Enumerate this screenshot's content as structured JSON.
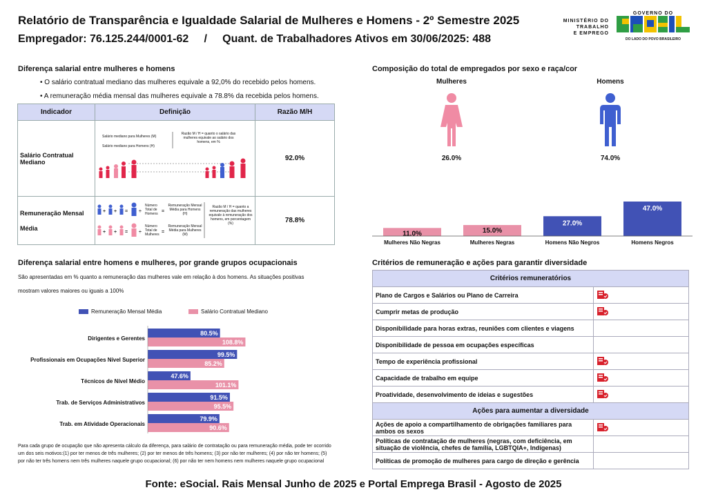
{
  "header": {
    "title": "Relatório de Transparência e Igualdade Salarial de Mulheres e Homens - 2º Semestre 2025",
    "subtitle": "Empregador: 76.125.244/0001-62     /     Quant. de Trabalhadores Ativos em 30/06/2025: 488"
  },
  "logos": {
    "ministry": [
      "MINISTÉRIO DO",
      "TRABALHO",
      "E EMPREGO"
    ],
    "gov_top": "GOVERNO DO",
    "gov_brand": "BRASIL",
    "gov_bottom": "DO LADO DO POVO BRASILEIRO"
  },
  "salary_diff": {
    "title": "Diferença salarial entre mulheres e homens",
    "bullet1": "• O salário contratual mediano das mulheres equivale a 92,0% do recebido pelos homens.",
    "bullet2": "• A remuneração média mensal das mulheres equivale a 78.8% da recebida pelos homens.",
    "table": {
      "headers": [
        "Indicador",
        "Definição",
        "Razão M/H"
      ],
      "row1": {
        "indicator": "Salário Contratual Mediano",
        "value": "92.0%",
        "def_a": "Salário mediano para Mulheres (M)",
        "def_b": "Salário mediano para Homens (H)",
        "def_c": "Razão M / H = quanto o salário das mulheres equivale ao salário dos homens, em %"
      },
      "row2": {
        "indicator_a": "Remuneração Mensal",
        "indicator_b": "Média",
        "value": "78.8%",
        "def_a": "Número Total de Homens",
        "def_b": "Remuneração Mensal Média para Homens (H)",
        "def_c": "Número Total de Mulheres",
        "def_d": "Remuneração Mensal Média para Mulheres (M)",
        "def_e": "Razão M / H = quanto a remuneração das mulheres equivale à remuneração dos homens, em porcentagem (%)"
      }
    }
  },
  "composition": {
    "title": "Composição do total de empregados por sexo e raça/cor",
    "women_label": "Mulheres",
    "men_label": "Homens",
    "women_pct": "26.0%",
    "men_pct": "74.0%",
    "colors": {
      "women": "#f08ba4",
      "men": "#3f5fd0",
      "bar_women": "#e991a8",
      "bar_men": "#4152b5"
    }
  },
  "chart_data": [
    {
      "type": "bar",
      "categories": [
        "Mulheres Não Negras",
        "Mulheres Negras",
        "Homens Não Negros",
        "Homens Negros"
      ],
      "values": [
        11.0,
        15.0,
        27.0,
        47.0
      ],
      "labels": [
        "11.0%",
        "15.0%",
        "27.0%",
        "47.0%"
      ],
      "ylim": [
        0,
        47
      ]
    },
    {
      "type": "bar",
      "orientation": "horizontal",
      "categories": [
        "Dirigentes e Gerentes",
        "Profissionais em Ocupações Nível Superior",
        "Técnicos de Nível Médio",
        "Trab. de Serviços Administrativos",
        "Trab. em Atividade Operacionais"
      ],
      "series": [
        {
          "name": "Remuneração Mensal Média",
          "values": [
            80.5,
            99.5,
            47.6,
            91.5,
            79.9
          ],
          "labels": [
            "80.5%",
            "99.5%",
            "47.6%",
            "91.5%",
            "79.9%"
          ]
        },
        {
          "name": "Salário Contratual Mediano",
          "values": [
            108.8,
            85.2,
            101.1,
            95.5,
            90.6
          ],
          "labels": [
            "108.8%",
            "85.2%",
            "101.1%",
            "95.5%",
            "90.6%"
          ]
        }
      ],
      "legend": "top"
    }
  ],
  "occupational": {
    "title": "Diferença salarial entre homens e mulheres, por grande grupos ocupacionais",
    "desc1": "São apresentadas em % quanto a remuneração das mulheres vale em relação à dos homens. As situações positivas",
    "desc2": "mostram valores maiores ou iguais a 100%",
    "footnote": "Para cada grupo de ocupação que não apresenta cálculo da diferença, para salário de contratação ou para remuneração média, pode ter ocorrido um dos seis motivos:(1) por ter menos de três mulheres; (2) por ter menos de três homens; (3) por não ter mulheres; (4) por não ter homens; (5) por não ter três homens nem três mulheres naquele grupo ocupacional; (6) por não ter nem homens nem mulheres naquele grupo ocupacional"
  },
  "criteria": {
    "title": "Critérios de remuneração e ações para garantir diversidade",
    "header1": "Critérios remuneratórios",
    "items": [
      {
        "label": "Plano de Cargos e Salários ou Plano de Carreira",
        "icon": true
      },
      {
        "label": "Cumprir metas de produção",
        "icon": true
      },
      {
        "label": "Disponibilidade para horas extras, reuniões com clientes e viagens",
        "icon": false
      },
      {
        "label": "Disponibilidade de pessoa em ocupações específicas",
        "icon": false
      },
      {
        "label": "Tempo de experiência profissional",
        "icon": true
      },
      {
        "label": "Capacidade de trabalho em equipe",
        "icon": true
      },
      {
        "label": "Proatividade, desenvolvimento de ideias e sugestões",
        "icon": true
      }
    ],
    "header2": "Ações para aumentar a diversidade",
    "actions": [
      {
        "label": "Ações de apoio a compartilhamento de obrigações familiares para ambos os sexos",
        "icon": true
      },
      {
        "label": "Políticas de contratação de mulheres (negras, com deficiência, em situação de violência, chefes de família, LGBTQIA+, Indígenas)",
        "icon": false
      },
      {
        "label": "Políticas de promoção de mulheres para cargo de direção e gerência",
        "icon": false
      }
    ]
  },
  "footer": "Fonte: eSocial. Rais Mensal Junho de 2025 e Portal Emprega Brasil - Agosto de 2025"
}
